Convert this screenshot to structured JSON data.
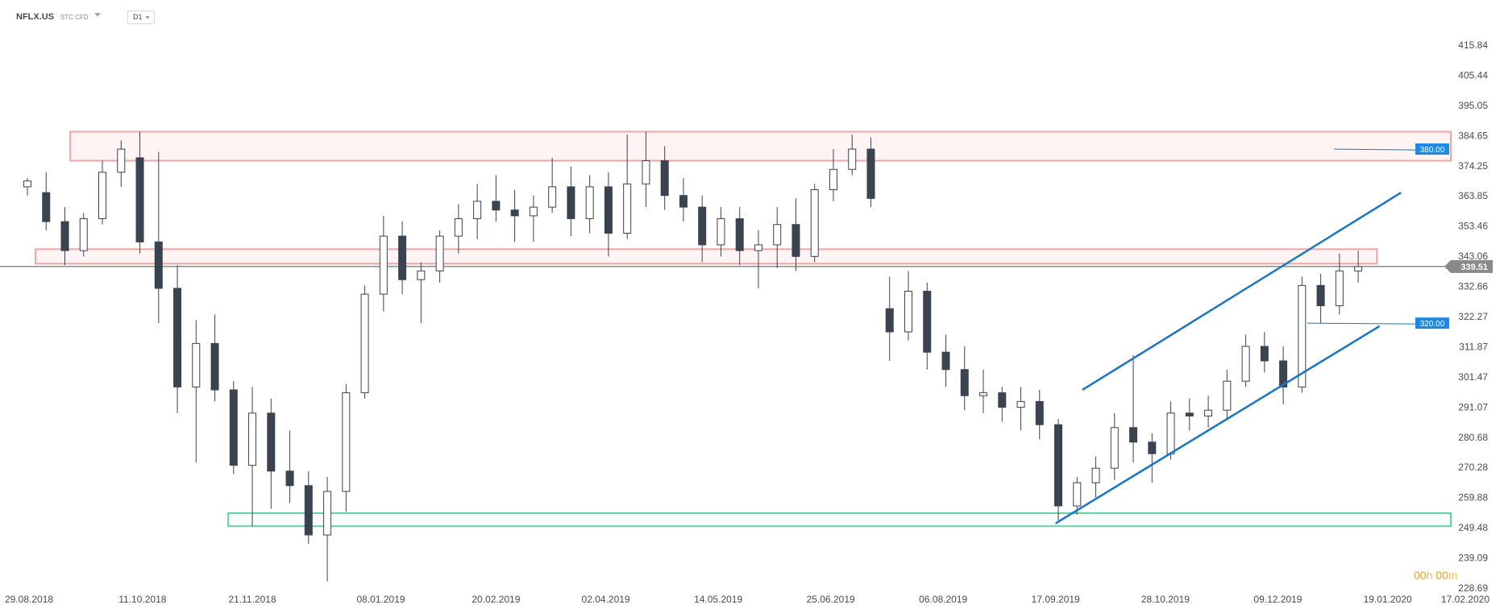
{
  "toolbar": {
    "symbol": "NFLX.US",
    "tags": "STC  CFD",
    "interval": "D1"
  },
  "countdown": {
    "hours": "00",
    "hours_unit": "h",
    "minutes": "00",
    "minutes_unit": "m"
  },
  "colors": {
    "bull_fill": "#ffffff",
    "bear_fill": "#3a4350",
    "candle_line": "#3a4350",
    "resistance_zone": "#f4a3a3",
    "support_zone": "#5fd3a3",
    "channel": "#1976c6",
    "level_badge": "#1e88e5",
    "last_price_badge": "#8a8a8a"
  },
  "chart_data": {
    "type": "candlestick",
    "xlim": [
      "2018-08-29",
      "2020-02-17"
    ],
    "ylim": [
      228.69,
      415.84
    ],
    "x_ticks": [
      "29.08.2018",
      "11.10.2018",
      "21.11.2018",
      "08.01.2019",
      "20.02.2019",
      "02.04.2019",
      "14.05.2019",
      "25.06.2019",
      "06.08.2019",
      "17.09.2019",
      "28.10.2019",
      "09.12.2019",
      "19.01.2020",
      "17.02.2020"
    ],
    "y_ticks": [
      "415.84",
      "405.44",
      "395.05",
      "384.65",
      "374.25",
      "363.85",
      "353.46",
      "343.06",
      "332.66",
      "322.27",
      "311.87",
      "301.47",
      "291.07",
      "280.68",
      "270.28",
      "259.88",
      "249.48",
      "239.09",
      "228.69"
    ],
    "last_price": "339.51",
    "levels": [
      {
        "label": "380.00",
        "value": 380.0,
        "from": "2019-12-30",
        "to": "2020-01-25"
      },
      {
        "label": "320.00",
        "value": 320.0,
        "from": "2019-12-20",
        "to": "2020-01-25"
      }
    ],
    "zones": [
      {
        "name": "resistance",
        "low": 376.0,
        "high": 386.0,
        "from": "2018-09-14",
        "to": "2020-02-17"
      },
      {
        "name": "middle",
        "low": 340.5,
        "high": 345.5,
        "from": "2018-09-01",
        "to": "2020-01-15"
      },
      {
        "name": "support",
        "low": 250.0,
        "high": 254.5,
        "from": "2018-11-12",
        "to": "2020-02-17"
      }
    ],
    "trendlines": [
      {
        "name": "channel-upper",
        "from": [
          "2019-09-27",
          297.0
        ],
        "to": [
          "2020-01-24",
          365.0
        ]
      },
      {
        "name": "channel-lower",
        "from": [
          "2019-09-17",
          251.0
        ],
        "to": [
          "2020-01-16",
          319.0
        ]
      }
    ],
    "candles": [
      {
        "date": "2018-08-29",
        "open": 367.0,
        "high": 370.0,
        "low": 364.0,
        "close": 369.0
      },
      {
        "date": "2018-09-05",
        "open": 365.0,
        "high": 372.0,
        "low": 352.0,
        "close": 355.0
      },
      {
        "date": "2018-09-12",
        "open": 355.0,
        "high": 360.0,
        "low": 340.0,
        "close": 345.0
      },
      {
        "date": "2018-09-19",
        "open": 345.0,
        "high": 358.0,
        "low": 343.0,
        "close": 356.0
      },
      {
        "date": "2018-09-26",
        "open": 356.0,
        "high": 376.0,
        "low": 354.0,
        "close": 372.0
      },
      {
        "date": "2018-10-03",
        "open": 372.0,
        "high": 383.0,
        "low": 367.0,
        "close": 380.0
      },
      {
        "date": "2018-10-10",
        "open": 377.0,
        "high": 386.0,
        "low": 344.0,
        "close": 348.0
      },
      {
        "date": "2018-10-17",
        "open": 348.0,
        "high": 379.0,
        "low": 320.0,
        "close": 332.0
      },
      {
        "date": "2018-10-24",
        "open": 332.0,
        "high": 340.0,
        "low": 289.0,
        "close": 298.0
      },
      {
        "date": "2018-10-31",
        "open": 298.0,
        "high": 321.0,
        "low": 272.0,
        "close": 313.0
      },
      {
        "date": "2018-11-07",
        "open": 313.0,
        "high": 323.0,
        "low": 293.0,
        "close": 297.0
      },
      {
        "date": "2018-11-14",
        "open": 297.0,
        "high": 300.0,
        "low": 268.0,
        "close": 271.0
      },
      {
        "date": "2018-11-21",
        "open": 271.0,
        "high": 298.0,
        "low": 250.0,
        "close": 289.0
      },
      {
        "date": "2018-11-28",
        "open": 289.0,
        "high": 294.0,
        "low": 256.0,
        "close": 269.0
      },
      {
        "date": "2018-12-05",
        "open": 269.0,
        "high": 283.0,
        "low": 258.0,
        "close": 264.0
      },
      {
        "date": "2018-12-12",
        "open": 264.0,
        "high": 269.0,
        "low": 244.0,
        "close": 247.0
      },
      {
        "date": "2018-12-19",
        "open": 247.0,
        "high": 267.0,
        "low": 231.0,
        "close": 262.0
      },
      {
        "date": "2018-12-26",
        "open": 262.0,
        "high": 299.0,
        "low": 255.0,
        "close": 296.0
      },
      {
        "date": "2019-01-02",
        "open": 296.0,
        "high": 333.0,
        "low": 294.0,
        "close": 330.0
      },
      {
        "date": "2019-01-09",
        "open": 330.0,
        "high": 357.0,
        "low": 324.0,
        "close": 350.0
      },
      {
        "date": "2019-01-16",
        "open": 350.0,
        "high": 355.0,
        "low": 330.0,
        "close": 335.0
      },
      {
        "date": "2019-01-23",
        "open": 335.0,
        "high": 341.0,
        "low": 320.0,
        "close": 338.0
      },
      {
        "date": "2019-01-30",
        "open": 338.0,
        "high": 352.0,
        "low": 334.0,
        "close": 350.0
      },
      {
        "date": "2019-02-06",
        "open": 350.0,
        "high": 361.0,
        "low": 344.0,
        "close": 356.0
      },
      {
        "date": "2019-02-13",
        "open": 356.0,
        "high": 368.0,
        "low": 349.0,
        "close": 362.0
      },
      {
        "date": "2019-02-20",
        "open": 362.0,
        "high": 371.0,
        "low": 355.0,
        "close": 359.0
      },
      {
        "date": "2019-02-27",
        "open": 359.0,
        "high": 366.0,
        "low": 348.0,
        "close": 357.0
      },
      {
        "date": "2019-03-06",
        "open": 357.0,
        "high": 364.0,
        "low": 348.0,
        "close": 360.0
      },
      {
        "date": "2019-03-13",
        "open": 360.0,
        "high": 377.0,
        "low": 358.0,
        "close": 367.0
      },
      {
        "date": "2019-03-20",
        "open": 367.0,
        "high": 374.0,
        "low": 350.0,
        "close": 356.0
      },
      {
        "date": "2019-03-27",
        "open": 356.0,
        "high": 371.0,
        "low": 351.0,
        "close": 367.0
      },
      {
        "date": "2019-04-03",
        "open": 367.0,
        "high": 372.0,
        "low": 343.0,
        "close": 351.0
      },
      {
        "date": "2019-04-10",
        "open": 351.0,
        "high": 385.0,
        "low": 349.0,
        "close": 368.0
      },
      {
        "date": "2019-04-17",
        "open": 368.0,
        "high": 386.0,
        "low": 360.0,
        "close": 376.0
      },
      {
        "date": "2019-04-24",
        "open": 376.0,
        "high": 381.0,
        "low": 359.0,
        "close": 364.0
      },
      {
        "date": "2019-05-01",
        "open": 364.0,
        "high": 370.0,
        "low": 355.0,
        "close": 360.0
      },
      {
        "date": "2019-05-08",
        "open": 360.0,
        "high": 364.0,
        "low": 341.0,
        "close": 347.0
      },
      {
        "date": "2019-05-15",
        "open": 347.0,
        "high": 360.0,
        "low": 343.0,
        "close": 356.0
      },
      {
        "date": "2019-05-22",
        "open": 356.0,
        "high": 360.0,
        "low": 340.0,
        "close": 345.0
      },
      {
        "date": "2019-05-29",
        "open": 345.0,
        "high": 352.0,
        "low": 332.0,
        "close": 347.0
      },
      {
        "date": "2019-06-05",
        "open": 347.0,
        "high": 360.0,
        "low": 339.0,
        "close": 354.0
      },
      {
        "date": "2019-06-12",
        "open": 354.0,
        "high": 363.0,
        "low": 338.0,
        "close": 343.0
      },
      {
        "date": "2019-06-19",
        "open": 343.0,
        "high": 368.0,
        "low": 341.0,
        "close": 366.0
      },
      {
        "date": "2019-06-26",
        "open": 366.0,
        "high": 380.0,
        "low": 362.0,
        "close": 373.0
      },
      {
        "date": "2019-07-03",
        "open": 373.0,
        "high": 385.0,
        "low": 371.0,
        "close": 380.0
      },
      {
        "date": "2019-07-10",
        "open": 380.0,
        "high": 384.0,
        "low": 360.0,
        "close": 363.0
      },
      {
        "date": "2019-07-17",
        "open": 325.0,
        "high": 336.0,
        "low": 307.0,
        "close": 317.0
      },
      {
        "date": "2019-07-24",
        "open": 317.0,
        "high": 338.0,
        "low": 314.0,
        "close": 331.0
      },
      {
        "date": "2019-07-31",
        "open": 331.0,
        "high": 334.0,
        "low": 304.0,
        "close": 310.0
      },
      {
        "date": "2019-08-07",
        "open": 310.0,
        "high": 316.0,
        "low": 298.0,
        "close": 304.0
      },
      {
        "date": "2019-08-14",
        "open": 304.0,
        "high": 312.0,
        "low": 290.0,
        "close": 295.0
      },
      {
        "date": "2019-08-21",
        "open": 295.0,
        "high": 304.0,
        "low": 289.0,
        "close": 296.0
      },
      {
        "date": "2019-08-28",
        "open": 296.0,
        "high": 298.0,
        "low": 286.0,
        "close": 291.0
      },
      {
        "date": "2019-09-04",
        "open": 291.0,
        "high": 298.0,
        "low": 283.0,
        "close": 293.0
      },
      {
        "date": "2019-09-11",
        "open": 293.0,
        "high": 297.0,
        "low": 280.0,
        "close": 285.0
      },
      {
        "date": "2019-09-18",
        "open": 285.0,
        "high": 287.0,
        "low": 252.0,
        "close": 257.0
      },
      {
        "date": "2019-09-25",
        "open": 257.0,
        "high": 267.0,
        "low": 254.0,
        "close": 265.0
      },
      {
        "date": "2019-10-02",
        "open": 265.0,
        "high": 274.0,
        "low": 260.0,
        "close": 270.0
      },
      {
        "date": "2019-10-09",
        "open": 270.0,
        "high": 289.0,
        "low": 266.0,
        "close": 284.0
      },
      {
        "date": "2019-10-16",
        "open": 284.0,
        "high": 309.0,
        "low": 272.0,
        "close": 279.0
      },
      {
        "date": "2019-10-23",
        "open": 279.0,
        "high": 282.0,
        "low": 265.0,
        "close": 275.0
      },
      {
        "date": "2019-10-30",
        "open": 275.0,
        "high": 293.0,
        "low": 273.0,
        "close": 289.0
      },
      {
        "date": "2019-11-06",
        "open": 289.0,
        "high": 294.0,
        "low": 283.0,
        "close": 288.0
      },
      {
        "date": "2019-11-13",
        "open": 288.0,
        "high": 295.0,
        "low": 284.0,
        "close": 290.0
      },
      {
        "date": "2019-11-20",
        "open": 290.0,
        "high": 304.0,
        "low": 287.0,
        "close": 300.0
      },
      {
        "date": "2019-11-27",
        "open": 300.0,
        "high": 316.0,
        "low": 298.0,
        "close": 312.0
      },
      {
        "date": "2019-12-04",
        "open": 312.0,
        "high": 317.0,
        "low": 303.0,
        "close": 307.0
      },
      {
        "date": "2019-12-11",
        "open": 307.0,
        "high": 312.0,
        "low": 292.0,
        "close": 298.0
      },
      {
        "date": "2019-12-18",
        "open": 298.0,
        "high": 336.0,
        "low": 296.0,
        "close": 333.0
      },
      {
        "date": "2019-12-25",
        "open": 333.0,
        "high": 337.0,
        "low": 320.0,
        "close": 326.0
      },
      {
        "date": "2020-01-01",
        "open": 326.0,
        "high": 344.0,
        "low": 323.0,
        "close": 338.0
      },
      {
        "date": "2020-01-08",
        "open": 338.0,
        "high": 345.0,
        "low": 334.0,
        "close": 339.51
      }
    ]
  }
}
